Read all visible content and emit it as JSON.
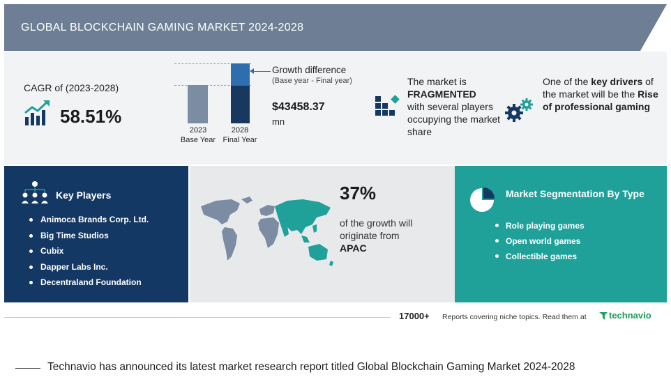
{
  "header": {
    "title": "GLOBAL BLOCKCHAIN GAMING MARKET 2024-2028"
  },
  "cagr": {
    "label": "CAGR of (2023-2028)",
    "value": "58.51%"
  },
  "growth_chart": {
    "bar_2023": {
      "year": "2023",
      "label": "Base Year"
    },
    "bar_2028": {
      "year": "2028",
      "label": "Final Year"
    },
    "title": "Growth difference",
    "subtitle": "(Base year - Final year)",
    "value": "$43458.37",
    "unit": "mn"
  },
  "fragmented": {
    "line1": "The market is",
    "bold": "FRAGMENTED",
    "line2": "with several players occupying the market share"
  },
  "drivers": {
    "pre": "One of the ",
    "bold1": "key drivers",
    "mid": " of the market will be the ",
    "bold2": "Rise of professional gaming"
  },
  "key_players": {
    "title": "Key Players",
    "items": [
      "Animoca Brands Corp. Ltd.",
      "Big Time Studios",
      "Cubix",
      "Dapper Labs Inc.",
      "Decentraland Foundation"
    ]
  },
  "region": {
    "percent": "37%",
    "text": "of the growth will originate from",
    "bold": "APAC"
  },
  "segmentation": {
    "title": "Market Segmentation By Type",
    "items": [
      "Role playing games",
      "Open world games",
      "Collectible games"
    ]
  },
  "footer": {
    "count": "17000+",
    "text": "Reports covering niche topics. Read them at",
    "brand": "technavio"
  },
  "caption": "Technavio has announced its latest market research report titled Global Blockchain Gaming Market 2024-2028",
  "colors": {
    "header": "#6e7f95",
    "navy": "#143864",
    "teal": "#1fa19a",
    "panel_gray": "#f2f3f5",
    "map_bg": "#e8e9eb"
  }
}
